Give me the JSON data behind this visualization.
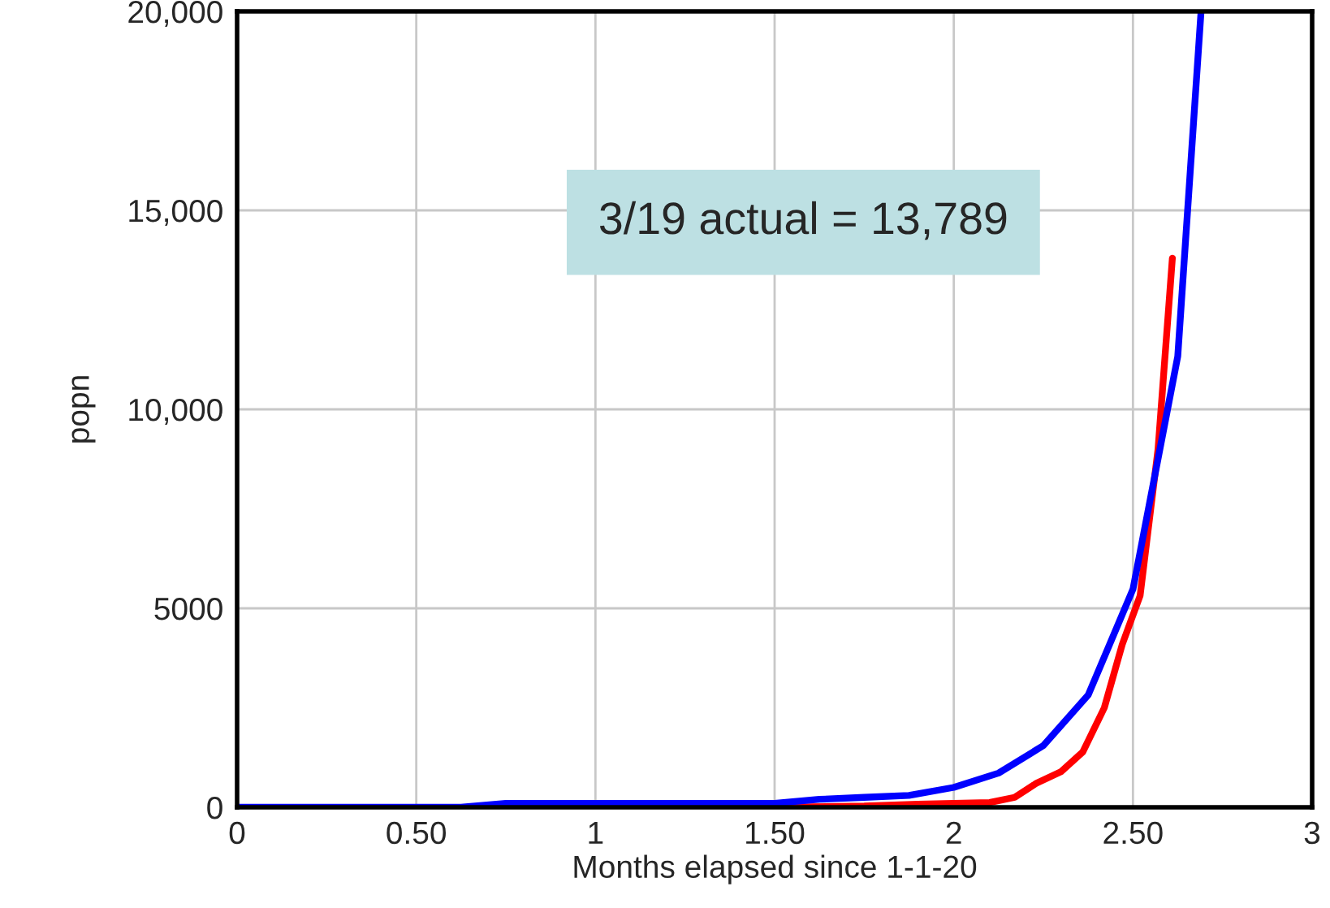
{
  "chart_data": {
    "type": "line",
    "xlabel": "Months elapsed since 1-1-20",
    "ylabel": "popn",
    "xlim": [
      0,
      3
    ],
    "ylim": [
      0,
      20000
    ],
    "xticks": [
      0,
      {
        "value": 0.5,
        "label": "0.50"
      },
      1,
      {
        "value": 1.5,
        "label": "1.50"
      },
      2,
      {
        "value": 2.5,
        "label": "2.50"
      },
      3
    ],
    "yticks": [
      0,
      5000,
      {
        "value": 10000,
        "label": "10,000"
      },
      {
        "value": 15000,
        "label": "15,000"
      },
      {
        "value": 20000,
        "label": "20,000"
      }
    ],
    "grid": true,
    "legend": false,
    "line_style": "solid",
    "marker": "none",
    "annotations": [
      "3/19 actual = 13,789"
    ],
    "series": [
      {
        "color": "#ff0000",
        "x": [
          1,
          1.5,
          1.75,
          1.9,
          2.0,
          2.1,
          2.17,
          2.23,
          2.3,
          2.36,
          2.42,
          2.47,
          2.52,
          2.57,
          2.61
        ],
        "values": [
          0,
          0,
          30,
          80,
          100,
          120,
          250,
          600,
          900,
          1390,
          2500,
          4090,
          5320,
          9000,
          13800
        ]
      },
      {
        "color": "#0000ff",
        "x": [
          0,
          0.625,
          0.75,
          1.5,
          1.625,
          1.75,
          1.875,
          2.0,
          2.125,
          2.25,
          2.375,
          2.5,
          2.625,
          2.69
        ],
        "values": [
          0,
          0,
          100,
          100,
          200,
          250,
          300,
          500,
          860,
          1550,
          2820,
          5480,
          11330,
          20000
        ]
      }
    ]
  }
}
